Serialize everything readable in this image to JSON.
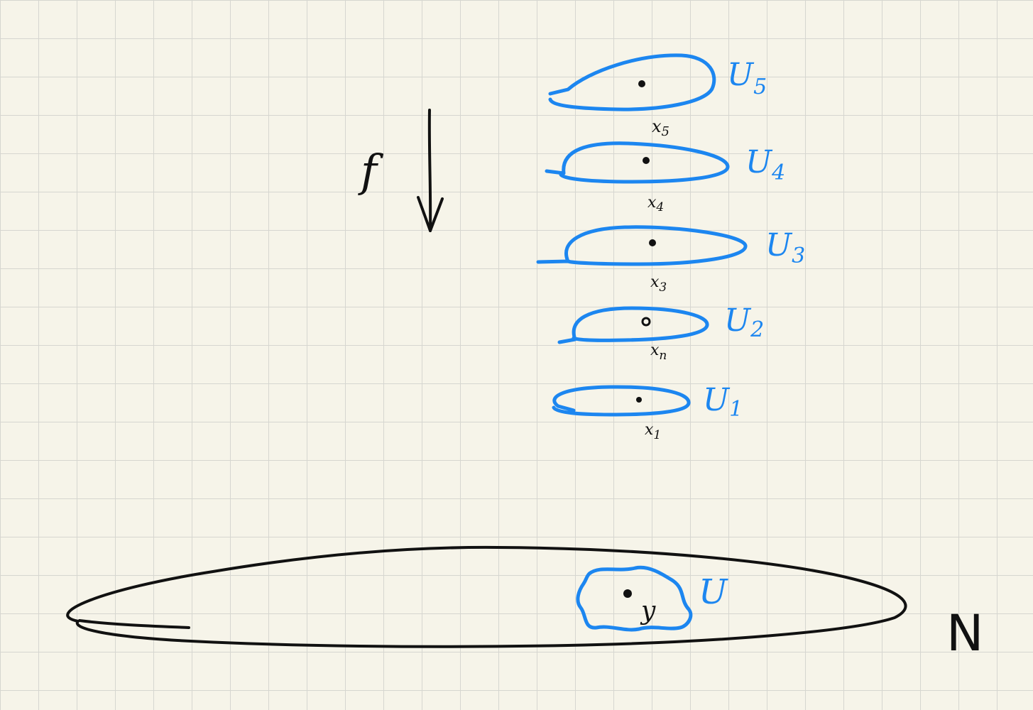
{
  "labels": {
    "map": "f",
    "manifold": "N",
    "neighborhood": "U",
    "point": "y"
  },
  "sheets": [
    {
      "set": "U",
      "sub": "5",
      "point": "x",
      "point_sub": "5"
    },
    {
      "set": "U",
      "sub": "4",
      "point": "x",
      "point_sub": "4"
    },
    {
      "set": "U",
      "sub": "3",
      "point": "x",
      "point_sub": "3"
    },
    {
      "set": "U",
      "sub": "2",
      "point": "x",
      "point_sub": "n"
    },
    {
      "set": "U",
      "sub": "1",
      "point": "x",
      "point_sub": "1"
    }
  ],
  "colors": {
    "background": "#f6f4e9",
    "grid": "#d6d6d0",
    "black_ink": "#111111",
    "blue_ink": "#1c86f0"
  }
}
